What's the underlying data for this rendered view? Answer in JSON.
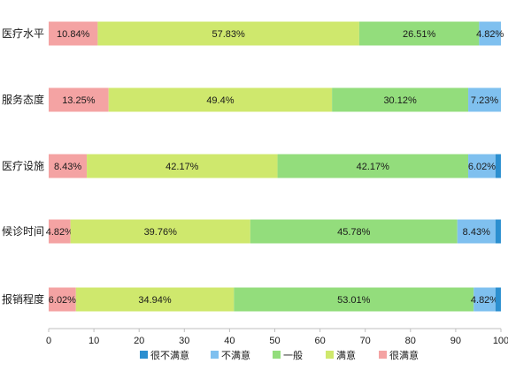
{
  "chart_data": {
    "type": "bar",
    "orientation": "horizontal",
    "stacked": true,
    "title": "",
    "xlabel": "",
    "ylabel": "",
    "xlim": [
      0,
      100
    ],
    "xticks": [
      "0",
      "10",
      "20",
      "30",
      "40",
      "50",
      "60",
      "70",
      "80",
      "90",
      "100"
    ],
    "grid": false,
    "legend_position": "bottom",
    "categories": [
      "医疗水平",
      "服务态度",
      "医疗设施",
      "候诊时间",
      "报销程度"
    ],
    "series": [
      {
        "name": "很满意",
        "color": "#f4a3a3",
        "values": [
          10.84,
          13.25,
          8.43,
          4.82,
          6.02
        ],
        "labels": [
          "10.84%",
          "13.25%",
          "8.43%",
          "4.82%",
          "6.02%"
        ]
      },
      {
        "name": "满意",
        "color": "#cfe86d",
        "values": [
          57.83,
          49.4,
          42.17,
          39.76,
          34.94
        ],
        "labels": [
          "57.83%",
          "49.4%",
          "42.17%",
          "39.76%",
          "34.94%"
        ]
      },
      {
        "name": "一般",
        "color": "#93dd7c",
        "values": [
          26.51,
          30.12,
          42.17,
          45.78,
          53.01
        ],
        "labels": [
          "26.51%",
          "30.12%",
          "42.17%",
          "45.78%",
          "53.01%"
        ]
      },
      {
        "name": "不满意",
        "color": "#7fc0ef",
        "values": [
          4.82,
          7.23,
          6.02,
          8.43,
          4.82
        ],
        "labels": [
          "4.82%",
          "7.23%",
          "6.02%",
          "8.43%",
          "4.82%"
        ]
      },
      {
        "name": "很不满意",
        "color": "#2b8fd0",
        "values": [
          0,
          0,
          1.2,
          1.2,
          1.2
        ],
        "labels": [
          "",
          "",
          "",
          "",
          ""
        ]
      }
    ],
    "legend_order": [
      "很不满意",
      "不满意",
      "一般",
      "满意",
      "很满意"
    ]
  }
}
